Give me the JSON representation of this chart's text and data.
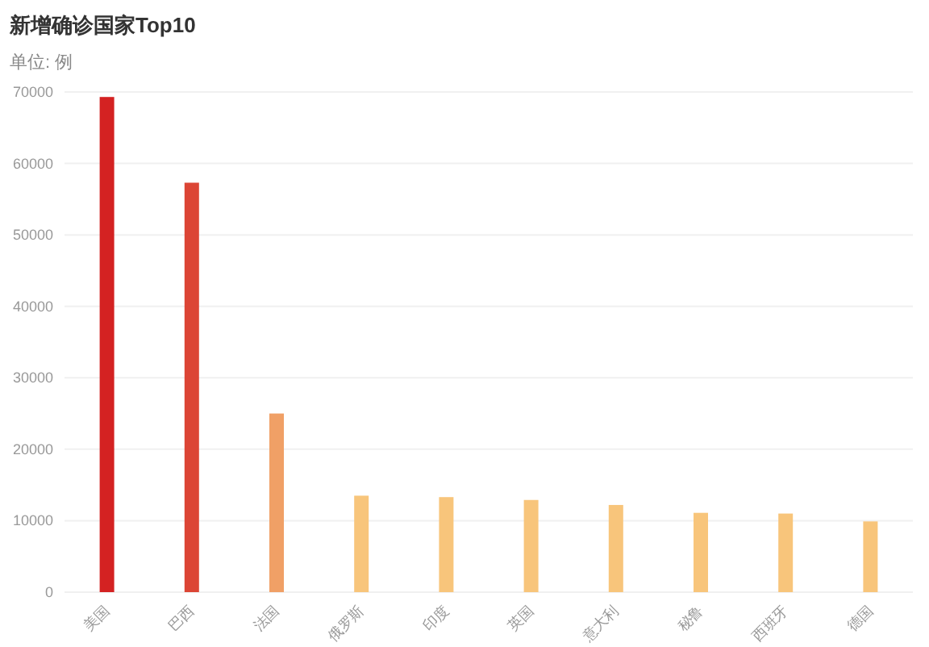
{
  "chart_data": {
    "type": "bar",
    "title": "新增确诊国家Top10",
    "subtitle": "单位: 例",
    "categories": [
      "美国",
      "巴西",
      "法国",
      "俄罗斯",
      "印度",
      "英国",
      "意大利",
      "秘鲁",
      "西班牙",
      "德国"
    ],
    "values": [
      69300,
      57300,
      25000,
      13500,
      13300,
      12900,
      12200,
      11100,
      11000,
      9900
    ],
    "colors": [
      "#d42222",
      "#dc4535",
      "#f0a066",
      "#f8c57b",
      "#f8c57b",
      "#f8c57b",
      "#f8c57b",
      "#f8c57b",
      "#f8c57b",
      "#f8c57b"
    ],
    "ylim": [
      0,
      70000
    ],
    "yticks": [
      0,
      10000,
      20000,
      30000,
      40000,
      50000,
      60000,
      70000
    ],
    "grid": "y"
  }
}
